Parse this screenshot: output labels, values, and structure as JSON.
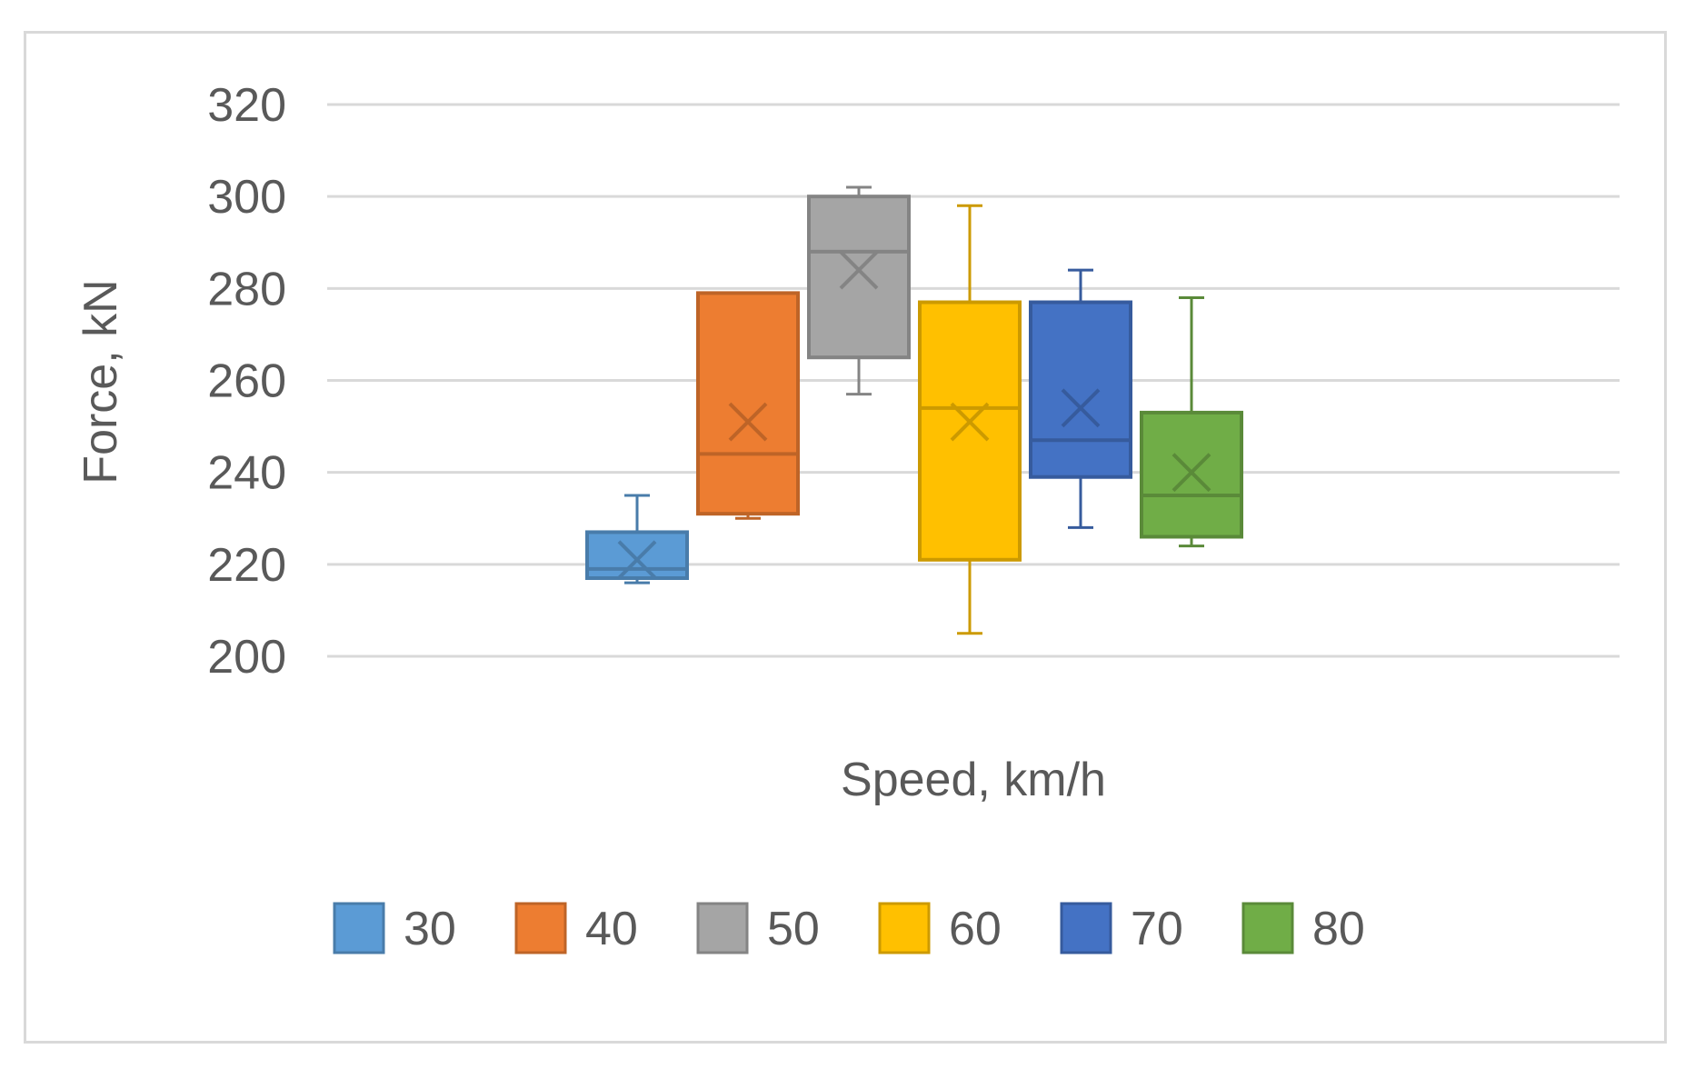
{
  "chart_data": {
    "type": "box",
    "title": "",
    "xlabel": "Speed, km/h",
    "ylabel": "Force, kN",
    "ylim": [
      200,
      320
    ],
    "yticks": [
      200,
      220,
      240,
      260,
      280,
      300,
      320
    ],
    "grid": true,
    "legend_position": "bottom",
    "series": [
      {
        "name": "30",
        "color": "#5B9BD5",
        "min": 216,
        "q1": 217,
        "median": 219,
        "q3": 227,
        "max": 235,
        "mean": 221
      },
      {
        "name": "40",
        "color": "#ED7D31",
        "min": 230,
        "q1": 231,
        "median": 244,
        "q3": 279,
        "max": 279,
        "mean": 251
      },
      {
        "name": "50",
        "color": "#A5A5A5",
        "min": 257,
        "q1": 265,
        "median": 288,
        "q3": 300,
        "max": 302,
        "mean": 284
      },
      {
        "name": "60",
        "color": "#FFC000",
        "min": 205,
        "q1": 221,
        "median": 254,
        "q3": 277,
        "max": 298,
        "mean": 251
      },
      {
        "name": "70",
        "color": "#4472C4",
        "min": 228,
        "q1": 239,
        "median": 247,
        "q3": 277,
        "max": 284,
        "mean": 254
      },
      {
        "name": "80",
        "color": "#70AD47",
        "min": 224,
        "q1": 226,
        "median": 235,
        "q3": 253,
        "max": 278,
        "mean": 240
      }
    ]
  }
}
